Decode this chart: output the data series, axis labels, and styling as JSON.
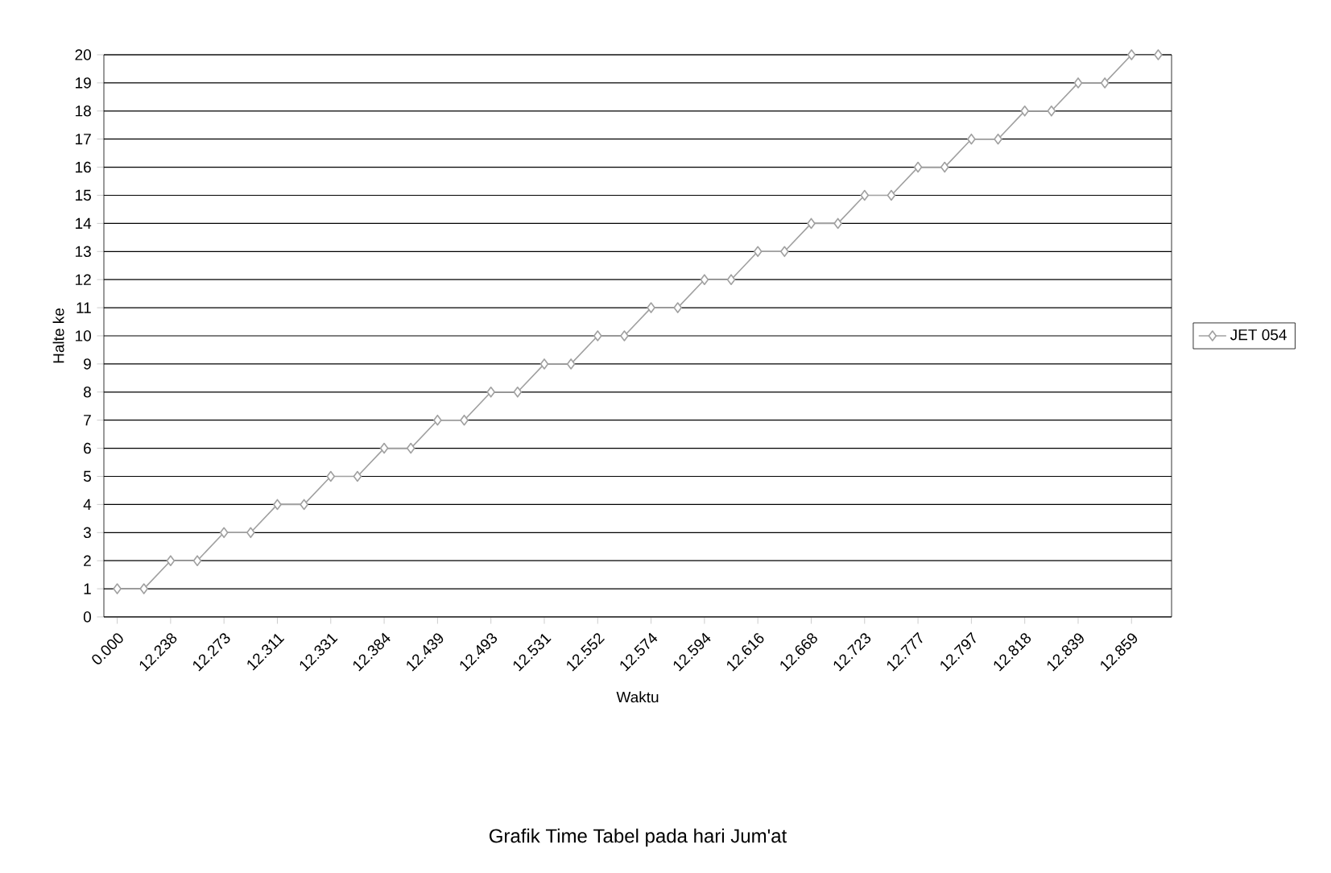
{
  "chart_data": {
    "type": "line",
    "title": "Grafik Time Tabel pada hari Jum'at",
    "xlabel": "Waktu",
    "ylabel": "Halte ke",
    "categories": [
      "0.000",
      null,
      "12.238",
      null,
      "12.273",
      null,
      "12.311",
      null,
      "12.331",
      null,
      "12.384",
      null,
      "12.439",
      null,
      "12.493",
      null,
      "12.531",
      null,
      "12.552",
      null,
      "12.574",
      null,
      "12.594",
      null,
      "12.616",
      null,
      "12.668",
      null,
      "12.723",
      null,
      "12.777",
      null,
      "12.797",
      null,
      "12.818",
      null,
      "12.839",
      null,
      "12.859",
      null
    ],
    "series": [
      {
        "name": "JET 054",
        "color": "#a0a0a0",
        "values": [
          1,
          1,
          2,
          2,
          3,
          3,
          4,
          4,
          5,
          5,
          6,
          6,
          7,
          7,
          8,
          8,
          9,
          9,
          10,
          10,
          11,
          11,
          12,
          12,
          13,
          13,
          14,
          14,
          15,
          15,
          16,
          16,
          17,
          17,
          18,
          18,
          19,
          19,
          20,
          20
        ]
      }
    ],
    "ylim": [
      0,
      20
    ],
    "yticks": [
      0,
      1,
      2,
      3,
      4,
      5,
      6,
      7,
      8,
      9,
      10,
      11,
      12,
      13,
      14,
      15,
      16,
      17,
      18,
      19,
      20
    ],
    "grid": "y",
    "legend": "right",
    "marker": "diamond",
    "line_style": "solid"
  }
}
